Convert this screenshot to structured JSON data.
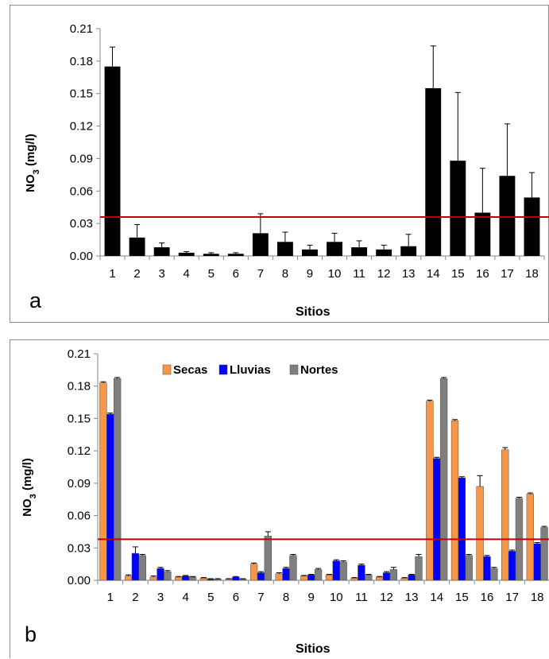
{
  "charts": {
    "a": {
      "panel_label": "a",
      "chart_data": {
        "type": "bar",
        "categories": [
          "1",
          "2",
          "3",
          "4",
          "5",
          "6",
          "7",
          "8",
          "9",
          "10",
          "11",
          "12",
          "13",
          "14",
          "15",
          "16",
          "17",
          "18"
        ],
        "series": [
          {
            "color": "#000000",
            "values": [
              0.175,
              0.017,
              0.008,
              0.003,
              0.002,
              0.002,
              0.021,
              0.013,
              0.006,
              0.013,
              0.008,
              0.006,
              0.009,
              0.155,
              0.088,
              0.04,
              0.074,
              0.054
            ],
            "errors": [
              0.018,
              0.012,
              0.004,
              0.001,
              0.001,
              0.001,
              0.018,
              0.009,
              0.004,
              0.008,
              0.006,
              0.004,
              0.011,
              0.039,
              0.063,
              0.041,
              0.048,
              0.023
            ]
          }
        ],
        "xlabel": "Sitios",
        "ylabel": "NO3 (mg/l)",
        "ylim": [
          0,
          0.21
        ],
        "yticks": [
          "0.00",
          "0.03",
          "0.06",
          "0.09",
          "0.12",
          "0.15",
          "0.18",
          "0.21"
        ],
        "reference_line": {
          "value": 0.036,
          "color": "#c00000"
        },
        "grid": false,
        "legend": null
      }
    },
    "b": {
      "panel_label": "b",
      "chart_data": {
        "type": "bar",
        "categories": [
          "1",
          "2",
          "3",
          "4",
          "5",
          "6",
          "7",
          "8",
          "9",
          "10",
          "11",
          "12",
          "13",
          "14",
          "15",
          "16",
          "17",
          "18"
        ],
        "series": [
          {
            "name": "Secas",
            "color": "#f79646",
            "values": [
              0.183,
              0.004,
              0.003,
              0.003,
              0.002,
              0.001,
              0.015,
              0.006,
              0.004,
              0.005,
              0.002,
              0.003,
              0.002,
              0.166,
              0.148,
              0.087,
              0.121,
              0.08
            ],
            "errors": [
              0.001,
              0.001,
              0.001,
              0.0005,
              0.0005,
              0.0005,
              0.001,
              0.001,
              0.0005,
              0.0005,
              0.0005,
              0.0005,
              0.0005,
              0.001,
              0.001,
              0.01,
              0.002,
              0.001
            ]
          },
          {
            "name": "Lluvias",
            "color": "#0000ff",
            "values": [
              0.154,
              0.025,
              0.011,
              0.004,
              0.001,
              0.003,
              0.007,
              0.011,
              0.005,
              0.018,
              0.014,
              0.007,
              0.005,
              0.113,
              0.095,
              0.022,
              0.027,
              0.034
            ],
            "errors": [
              0.001,
              0.006,
              0.001,
              0.0005,
              0.0005,
              0.0005,
              0.001,
              0.001,
              0.0005,
              0.001,
              0.001,
              0.001,
              0.0005,
              0.001,
              0.001,
              0.001,
              0.001,
              0.001
            ]
          },
          {
            "name": "Nortes",
            "color": "#7f7f7f",
            "values": [
              0.187,
              0.023,
              0.008,
              0.003,
              0.001,
              0.001,
              0.041,
              0.023,
              0.01,
              0.017,
              0.005,
              0.01,
              0.022,
              0.187,
              0.023,
              0.011,
              0.076,
              0.049
            ],
            "errors": [
              0.001,
              0.001,
              0.001,
              0.0005,
              0.0005,
              0.0005,
              0.004,
              0.001,
              0.001,
              0.001,
              0.0005,
              0.002,
              0.002,
              0.001,
              0.001,
              0.001,
              0.001,
              0.001
            ]
          }
        ],
        "xlabel": "Sitios",
        "ylabel": "NO3 (mg/l)",
        "ylim": [
          0,
          0.21
        ],
        "yticks": [
          "0.00",
          "0.03",
          "0.06",
          "0.09",
          "0.12",
          "0.15",
          "0.18",
          "0.21"
        ],
        "reference_line": {
          "value": 0.038,
          "color": "#c00000"
        },
        "grid": false,
        "legend": "top-center"
      }
    }
  }
}
